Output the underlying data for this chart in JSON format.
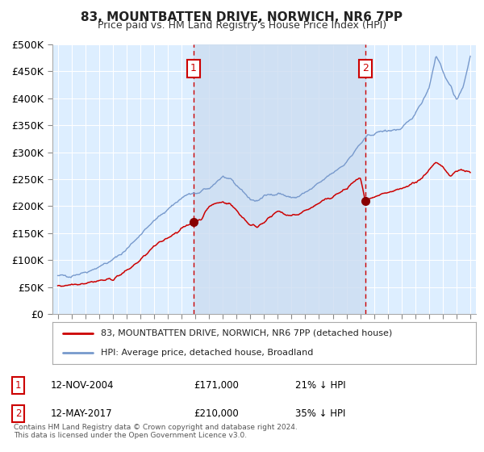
{
  "title": "83, MOUNTBATTEN DRIVE, NORWICH, NR6 7PP",
  "subtitle": "Price paid vs. HM Land Registry's House Price Index (HPI)",
  "legend_line1": "83, MOUNTBATTEN DRIVE, NORWICH, NR6 7PP (detached house)",
  "legend_line2": "HPI: Average price, detached house, Broadland",
  "annotation1_date": "12-NOV-2004",
  "annotation1_price": "£171,000",
  "annotation1_hpi": "21% ↓ HPI",
  "annotation2_date": "12-MAY-2017",
  "annotation2_price": "£210,000",
  "annotation2_hpi": "35% ↓ HPI",
  "footer": "Contains HM Land Registry data © Crown copyright and database right 2024.\nThis data is licensed under the Open Government Licence v3.0.",
  "plot_bg_color": "#ddeeff",
  "shade_color": "#ccddf0",
  "red_color": "#cc0000",
  "blue_color": "#7799cc",
  "dot_color": "#880000",
  "vline_color": "#cc0000",
  "grid_color": "#ffffff",
  "border_color": "#aaaaaa",
  "ylim": [
    0,
    500000
  ],
  "yticks": [
    0,
    50000,
    100000,
    150000,
    200000,
    250000,
    300000,
    350000,
    400000,
    450000,
    500000
  ],
  "sale1_year": 2004.87,
  "sale1_value": 171000,
  "sale2_year": 2017.37,
  "sale2_value": 210000,
  "hpi_points_x": [
    1995.0,
    1996.0,
    1997.0,
    1998.0,
    1999.0,
    2000.0,
    2001.0,
    2002.0,
    2003.0,
    2004.0,
    2004.5,
    2005.0,
    2005.5,
    2006.0,
    2006.5,
    2007.0,
    2007.5,
    2008.0,
    2008.5,
    2009.0,
    2009.5,
    2010.0,
    2010.5,
    2011.0,
    2011.5,
    2012.0,
    2012.5,
    2013.0,
    2013.5,
    2014.0,
    2014.5,
    2015.0,
    2015.5,
    2016.0,
    2016.5,
    2017.0,
    2017.5,
    2018.0,
    2018.5,
    2019.0,
    2019.5,
    2020.0,
    2020.5,
    2021.0,
    2021.5,
    2022.0,
    2022.3,
    2022.5,
    2022.8,
    2023.0,
    2023.3,
    2023.5,
    2023.8,
    2024.0,
    2024.5,
    2025.0
  ],
  "hpi_points_y": [
    70000,
    72000,
    78000,
    88000,
    100000,
    120000,
    148000,
    172000,
    195000,
    215000,
    222000,
    222000,
    228000,
    232000,
    245000,
    255000,
    248000,
    238000,
    228000,
    212000,
    210000,
    218000,
    222000,
    225000,
    220000,
    215000,
    218000,
    225000,
    232000,
    242000,
    252000,
    262000,
    272000,
    282000,
    298000,
    315000,
    328000,
    335000,
    338000,
    340000,
    342000,
    342000,
    355000,
    372000,
    395000,
    420000,
    455000,
    480000,
    465000,
    450000,
    435000,
    425000,
    405000,
    400000,
    420000,
    480000
  ],
  "price_points_x": [
    1995.0,
    1996.0,
    1997.0,
    1998.0,
    1999.0,
    2000.0,
    2001.0,
    2002.0,
    2003.0,
    2004.0,
    2004.87,
    2005.5,
    2006.0,
    2006.5,
    2007.0,
    2007.5,
    2008.0,
    2008.5,
    2009.0,
    2009.5,
    2010.0,
    2010.5,
    2011.0,
    2011.5,
    2012.0,
    2012.5,
    2013.0,
    2013.5,
    2014.0,
    2014.5,
    2015.0,
    2015.5,
    2016.0,
    2016.5,
    2017.0,
    2017.37,
    2018.0,
    2018.5,
    2019.0,
    2019.5,
    2020.0,
    2020.5,
    2021.0,
    2021.5,
    2022.0,
    2022.5,
    2023.0,
    2023.5,
    2024.0,
    2024.5,
    2025.0
  ],
  "price_points_y": [
    52000,
    55000,
    58000,
    62000,
    65000,
    80000,
    100000,
    125000,
    142000,
    158000,
    171000,
    178000,
    200000,
    205000,
    208000,
    205000,
    192000,
    178000,
    165000,
    162000,
    172000,
    180000,
    190000,
    185000,
    182000,
    185000,
    192000,
    198000,
    205000,
    212000,
    218000,
    225000,
    232000,
    245000,
    252000,
    210000,
    215000,
    220000,
    225000,
    228000,
    232000,
    238000,
    245000,
    252000,
    268000,
    280000,
    272000,
    258000,
    265000,
    268000,
    262000
  ]
}
